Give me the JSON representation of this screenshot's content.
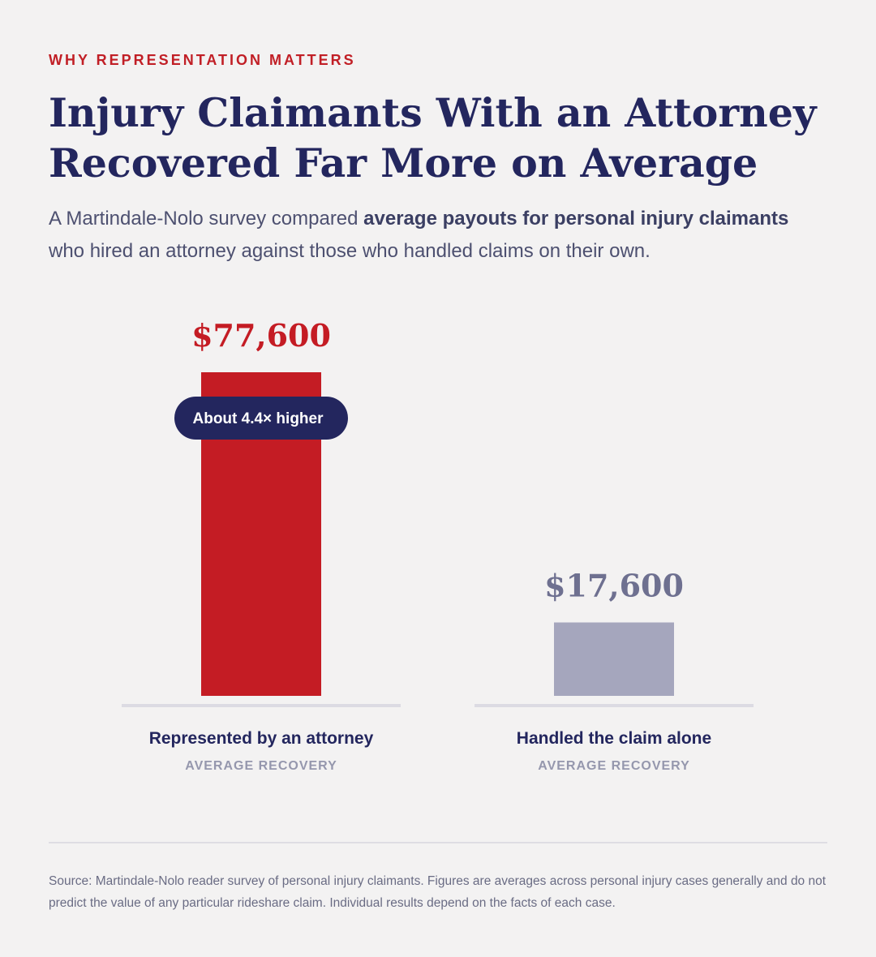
{
  "eyebrow": "WHY REPRESENTATION MATTERS",
  "title": "Injury Claimants With an Attorney Recovered Far More on Average",
  "subtitle": {
    "part1": "A Martindale-Nolo survey compared ",
    "bold": "average payouts for personal injury claimants",
    "part2": " who hired an attorney against those who handled claims on their own."
  },
  "chart_data": {
    "type": "bar",
    "categories": [
      "Represented by an attorney",
      "Handled the claim alone"
    ],
    "sublabels": [
      "AVERAGE RECOVERY",
      "AVERAGE RECOVERY"
    ],
    "values": [
      77600,
      17600
    ],
    "value_labels": [
      "$77,600",
      "$17,600"
    ],
    "colors": [
      "#c41c24",
      "#a5a6bd"
    ],
    "value_label_colors": [
      "#c41c24",
      "#6e7090"
    ],
    "ylim": [
      0,
      77600
    ],
    "annotation": "About 4.4× higher",
    "annotation_color": "#23265e",
    "grid": false,
    "legend": "none"
  },
  "source": "Source: Martindale-Nolo reader survey of personal injury claimants. Figures are averages across personal injury cases generally and do not predict the value of any particular rideshare claim. Individual results depend on the facts of each case."
}
